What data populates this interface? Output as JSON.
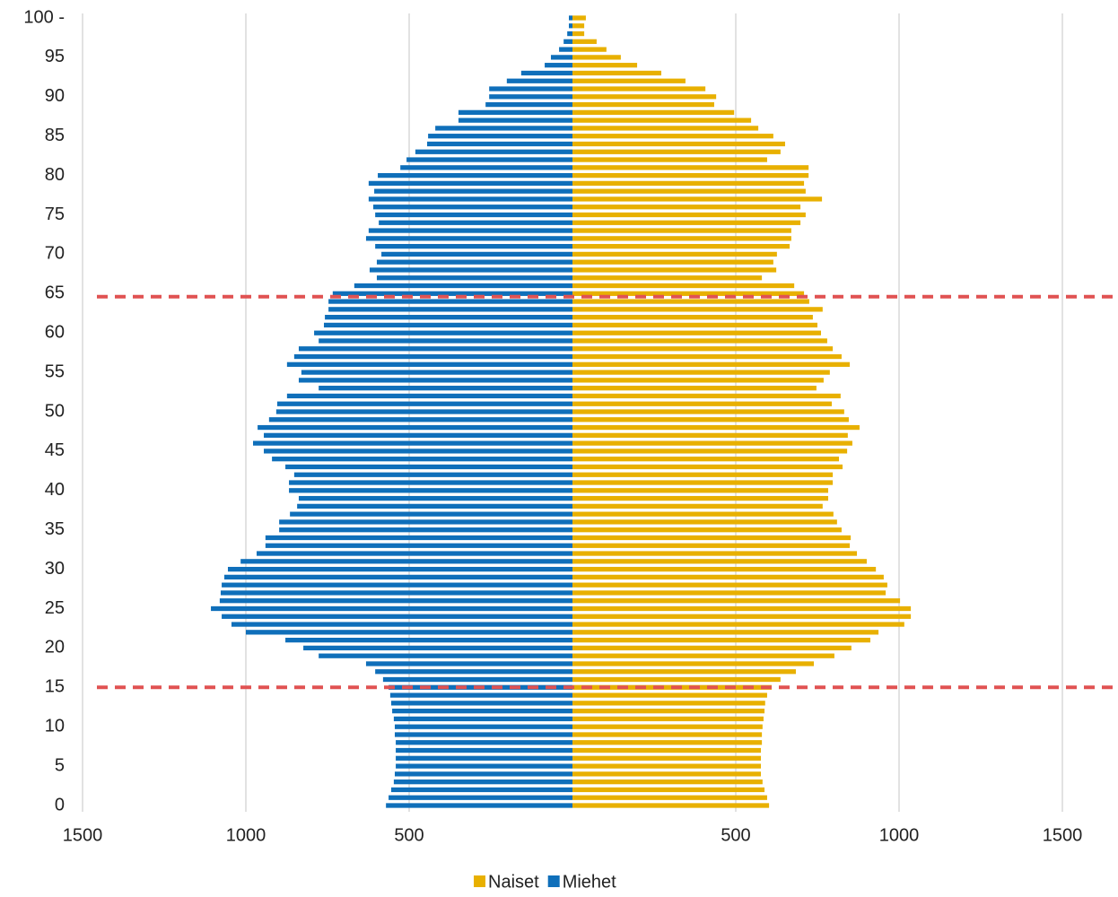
{
  "chart_data": {
    "type": "pyramid",
    "categories": [
      0,
      1,
      2,
      3,
      4,
      5,
      6,
      7,
      8,
      9,
      10,
      11,
      12,
      13,
      14,
      15,
      16,
      17,
      18,
      19,
      20,
      21,
      22,
      23,
      24,
      25,
      26,
      27,
      28,
      29,
      30,
      31,
      32,
      33,
      34,
      35,
      36,
      37,
      38,
      39,
      40,
      41,
      42,
      43,
      44,
      45,
      46,
      47,
      48,
      49,
      50,
      51,
      52,
      53,
      54,
      55,
      56,
      57,
      58,
      59,
      60,
      61,
      62,
      63,
      64,
      65,
      66,
      67,
      68,
      69,
      70,
      71,
      72,
      73,
      74,
      75,
      76,
      77,
      78,
      79,
      80,
      81,
      82,
      83,
      84,
      85,
      86,
      87,
      88,
      89,
      90,
      91,
      92,
      93,
      94,
      95,
      96,
      97,
      98,
      99,
      100
    ],
    "series": [
      {
        "name": "Naiset",
        "color": "#e8b000",
        "values": [
          602,
          596,
          588,
          582,
          577,
          577,
          577,
          577,
          580,
          580,
          582,
          585,
          588,
          590,
          596,
          610,
          637,
          684,
          739,
          802,
          854,
          912,
          937,
          1016,
          1036,
          1036,
          1003,
          959,
          964,
          953,
          929,
          901,
          871,
          849,
          852,
          824,
          810,
          799,
          766,
          783,
          783,
          797,
          797,
          827,
          816,
          841,
          857,
          843,
          879,
          846,
          832,
          794,
          821,
          747,
          769,
          788,
          849,
          824,
          797,
          780,
          761,
          750,
          736,
          766,
          725,
          709,
          679,
          580,
          624,
          615,
          626,
          665,
          670,
          670,
          698,
          714,
          698,
          764,
          714,
          709,
          723,
          723,
          596,
          637,
          651,
          615,
          569,
          547,
          495,
          434,
          440,
          407,
          346,
          272,
          198,
          148,
          104,
          74,
          36,
          36,
          41
        ]
      },
      {
        "name": "Miehet",
        "color": "#0f6fba",
        "values": [
          -571,
          -563,
          -555,
          -547,
          -544,
          -541,
          -541,
          -541,
          -541,
          -544,
          -544,
          -547,
          -552,
          -555,
          -558,
          -563,
          -580,
          -604,
          -632,
          -777,
          -824,
          -879,
          -1000,
          -1044,
          -1074,
          -1107,
          -1080,
          -1077,
          -1074,
          -1066,
          -1055,
          -1016,
          -967,
          -940,
          -940,
          -898,
          -898,
          -865,
          -843,
          -838,
          -868,
          -868,
          -852,
          -879,
          -920,
          -945,
          -978,
          -945,
          -964,
          -929,
          -907,
          -904,
          -874,
          -777,
          -838,
          -830,
          -874,
          -852,
          -838,
          -777,
          -791,
          -761,
          -758,
          -747,
          -747,
          -734,
          -668,
          -599,
          -621,
          -599,
          -585,
          -604,
          -632,
          -624,
          -593,
          -604,
          -610,
          -624,
          -607,
          -624,
          -596,
          -527,
          -508,
          -481,
          -445,
          -442,
          -420,
          -349,
          -349,
          -266,
          -255,
          -255,
          -201,
          -157,
          -85,
          -66,
          -41,
          -27,
          -16,
          -11,
          -11
        ]
      }
    ],
    "xlim": [
      -1500,
      1500
    ],
    "xticks": [
      {
        "value": -1500,
        "label": "1500"
      },
      {
        "value": -1000,
        "label": "1000"
      },
      {
        "value": -500,
        "label": "500"
      },
      500,
      1000,
      1500
    ],
    "ylim": [
      0,
      100
    ],
    "yticks": [
      0,
      5,
      10,
      15,
      20,
      25,
      30,
      35,
      40,
      45,
      50,
      55,
      60,
      65,
      70,
      75,
      80,
      85,
      90,
      95,
      {
        "value": 100,
        "label": "100 -"
      }
    ],
    "grid": true,
    "reference_lines": {
      "color": "#e05252",
      "values": [
        64.6,
        15
      ]
    },
    "legend": "bottom"
  }
}
